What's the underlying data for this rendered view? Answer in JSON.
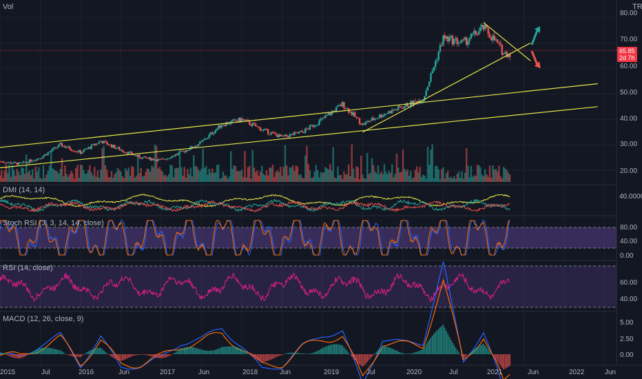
{
  "symbol_currency": "TRY",
  "last_price": "65.85",
  "countdown": "2d 7h",
  "chart_data": {
    "type": "candlestick",
    "x_axis": {
      "ticks": [
        "2015",
        "Jul",
        "2016",
        "Jun",
        "2017",
        "Jun",
        "2018",
        "Jun",
        "2019",
        "Jul",
        "2020",
        "Jul",
        "2021",
        "Jun",
        "2022",
        "Jun"
      ]
    },
    "price_panel": {
      "title": "Vol",
      "y_ticks": [
        "80.00",
        "70.00",
        "60.00",
        "50.00",
        "40.00",
        "30.00",
        "20.00"
      ],
      "ylim": [
        16,
        82
      ],
      "price_anchors": [
        [
          "2015-01",
          23.5
        ],
        [
          "2015-04",
          22.5
        ],
        [
          "2015-07",
          25
        ],
        [
          "2015-10",
          30
        ],
        [
          "2016-01",
          27
        ],
        [
          "2016-04",
          31.5
        ],
        [
          "2016-07",
          28
        ],
        [
          "2016-10",
          25
        ],
        [
          "2017-01",
          24
        ],
        [
          "2017-04",
          27
        ],
        [
          "2017-07",
          31
        ],
        [
          "2017-10",
          38
        ],
        [
          "2018-01",
          40
        ],
        [
          "2018-04",
          36
        ],
        [
          "2018-07",
          33
        ],
        [
          "2018-10",
          35
        ],
        [
          "2019-01",
          40
        ],
        [
          "2019-04",
          46
        ],
        [
          "2019-07",
          38
        ],
        [
          "2019-10",
          42
        ],
        [
          "2020-01",
          45
        ],
        [
          "2020-04",
          48
        ],
        [
          "2020-07",
          72
        ],
        [
          "2020-10",
          70
        ],
        [
          "2021-01",
          76
        ],
        [
          "2021-03",
          70
        ],
        [
          "2021-04",
          66
        ],
        [
          "2021-05",
          65.85
        ]
      ],
      "volume_note": "histogram bars at panel bottom",
      "trendlines": [
        {
          "from": [
            "2015-01",
            29
          ],
          "to": [
            "2022-06",
            54
          ]
        },
        {
          "from": [
            "2015-01",
            21
          ],
          "to": [
            "2022-06",
            45
          ]
        },
        {
          "from": [
            "2019-07",
            35
          ],
          "to": [
            "2021-08",
            70
          ]
        },
        {
          "from": [
            "2021-01",
            78
          ],
          "to": [
            "2021-08",
            63
          ]
        }
      ],
      "arrows": [
        {
          "direction": "up",
          "color": "#26a69a"
        },
        {
          "direction": "down",
          "color": "#ef5350"
        }
      ]
    },
    "indicators": [
      {
        "title": "DMI (14, 14)",
        "y_ticks": [
          "40.0000"
        ],
        "ylim": [
          0,
          60
        ]
      },
      {
        "title": "Stoch RSI (3, 3, 14, 14, close)",
        "y_ticks": [
          "80.00",
          "40.00",
          "0.00"
        ],
        "ylim": [
          0,
          100
        ],
        "band": [
          20,
          80
        ]
      },
      {
        "title": "RSI (14, close)",
        "y_ticks": [
          "60.00",
          "40.00"
        ],
        "ylim": [
          25,
          85
        ],
        "band": [
          30,
          70
        ]
      },
      {
        "title": "MACD (12, 26, close, 9)",
        "y_ticks": [
          "5.00",
          "2.50",
          "0.00"
        ],
        "ylim": [
          -1.2,
          6.5
        ]
      }
    ]
  }
}
